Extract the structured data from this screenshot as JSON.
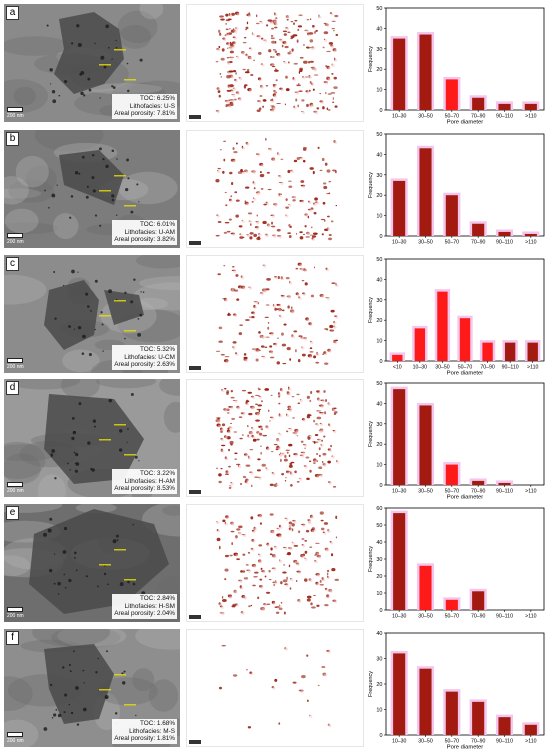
{
  "panels": [
    {
      "letter": "a",
      "toc": "TOC: 6.25%",
      "litho": "Lithofacies: U-S",
      "poro": "Areal porosity: 7.81%",
      "scale": "200 nm"
    },
    {
      "letter": "b",
      "toc": "TOC: 6.01%",
      "litho": "Lithofacies: U-AM",
      "poro": "Areal porosity: 3.82%",
      "scale": "200 nm"
    },
    {
      "letter": "c",
      "toc": "TOC: 5.32%",
      "litho": "Lithofacies: U-CM",
      "poro": "Areal porosity: 2.63%",
      "scale": "200 nm"
    },
    {
      "letter": "d",
      "toc": "TOC: 3.22%",
      "litho": "Lithofacies: H-AM",
      "poro": "Areal porosity: 8.53%",
      "scale": "200 nm"
    },
    {
      "letter": "e",
      "toc": "TOC: 2.84%",
      "litho": "Lithofacies: H-SM",
      "poro": "Areal porosity: 2.04%",
      "scale": "200 nm"
    },
    {
      "letter": "f",
      "toc": "TOC: 1.68%",
      "litho": "Lithofacies: M-S",
      "poro": "Areal porosity: 1.81%",
      "scale": "200 nm"
    }
  ],
  "colors": {
    "bar_dark": "#a31b10",
    "bar_red": "#ff1a1a",
    "bar_glow": "#f4c6ee",
    "pore": "#9a2212"
  },
  "chart_data": [
    {
      "type": "bar",
      "panel": "a",
      "categories": [
        "10–30",
        "30–50",
        "50–70",
        "70–90",
        "90–110",
        ">110"
      ],
      "values": [
        35,
        37,
        15,
        6,
        3,
        3
      ],
      "ylim": [
        0,
        50
      ],
      "yticks": [
        0,
        10,
        20,
        30,
        40,
        50
      ],
      "xlabel": "Pore diameter",
      "ylabel": "Frequency"
    },
    {
      "type": "bar",
      "panel": "b",
      "categories": [
        "10–30",
        "30–50",
        "50–70",
        "70–90",
        "90–110",
        ">110"
      ],
      "values": [
        27,
        43,
        20,
        6,
        2,
        1
      ],
      "ylim": [
        0,
        50
      ],
      "yticks": [
        0,
        10,
        20,
        30,
        40,
        50
      ],
      "xlabel": "",
      "ylabel": "Frequency"
    },
    {
      "type": "bar",
      "panel": "c",
      "categories": [
        "<10",
        "10–30",
        "30–50",
        "50–70",
        "70–90",
        "90–110",
        ">110"
      ],
      "values": [
        3,
        16,
        34,
        21,
        9,
        9,
        9
      ],
      "ylim": [
        0,
        50
      ],
      "yticks": [
        0,
        10,
        20,
        30,
        40,
        50
      ],
      "xlabel": "Pore diameter",
      "ylabel": "Frequency"
    },
    {
      "type": "bar",
      "panel": "d",
      "categories": [
        "10–30",
        "30–50",
        "50–70",
        "70–90",
        "90–110",
        ">110"
      ],
      "values": [
        47,
        39,
        10,
        2,
        1,
        0
      ],
      "ylim": [
        0,
        50
      ],
      "yticks": [
        0,
        10,
        20,
        30,
        40,
        50
      ],
      "xlabel": "Pore diameter",
      "ylabel": "Frequency"
    },
    {
      "type": "bar",
      "panel": "e",
      "categories": [
        "10–30",
        "30–50",
        "50–70",
        "70–90",
        "90–110",
        ">110"
      ],
      "values": [
        57,
        26,
        6,
        11,
        0,
        0
      ],
      "ylim": [
        0,
        60
      ],
      "yticks": [
        0,
        10,
        20,
        30,
        40,
        50,
        60
      ],
      "xlabel": "",
      "ylabel": "Frequency"
    },
    {
      "type": "bar",
      "panel": "f",
      "categories": [
        "10–30",
        "30–50",
        "50–70",
        "70–90",
        "90–110",
        ">110"
      ],
      "values": [
        32,
        26,
        17,
        13,
        7,
        4
      ],
      "ylim": [
        0,
        40
      ],
      "yticks": [
        0,
        10,
        20,
        30,
        40
      ],
      "xlabel": "Pore diameter",
      "ylabel": "Frequency"
    }
  ]
}
